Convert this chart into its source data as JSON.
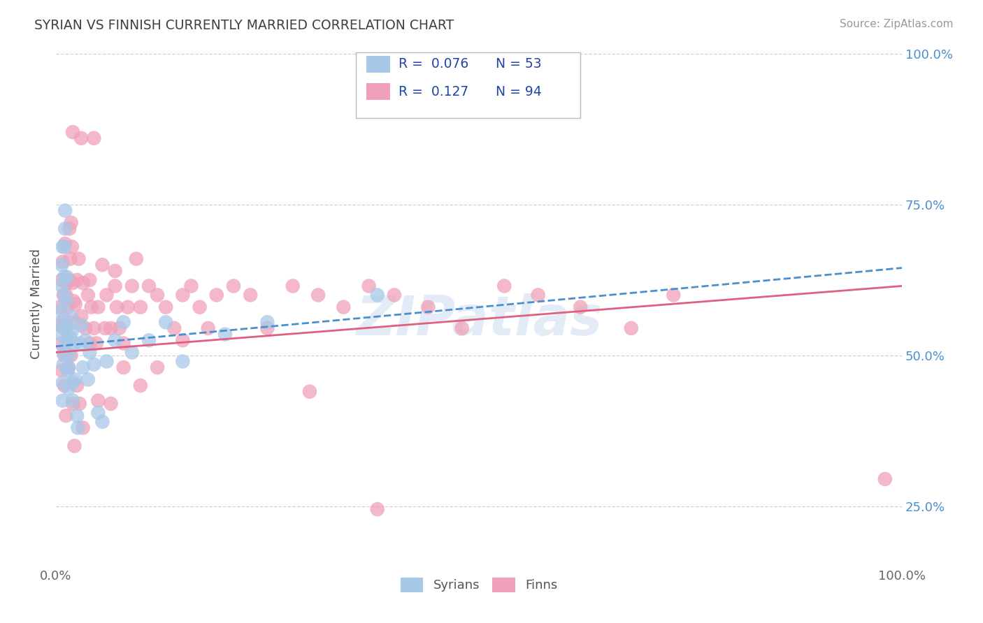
{
  "title": "SYRIAN VS FINNISH CURRENTLY MARRIED CORRELATION CHART",
  "source_text": "Source: ZipAtlas.com",
  "ylabel": "Currently Married",
  "xlim": [
    0.0,
    1.0
  ],
  "ylim": [
    0.15,
    1.02
  ],
  "xtick_labels": [
    "0.0%",
    "100.0%"
  ],
  "ytick_labels": [
    "25.0%",
    "50.0%",
    "75.0%",
    "100.0%"
  ],
  "ytick_positions": [
    0.25,
    0.5,
    0.75,
    1.0
  ],
  "watermark": "ZIPatlas",
  "legend": {
    "syrian_R": "0.076",
    "syrian_N": "53",
    "finn_R": "0.127",
    "finn_N": "94",
    "syrian_color": "#a8c8e8",
    "finn_color": "#f0a0b8"
  },
  "syrian_color": "#a8c8e8",
  "finn_color": "#f0a0b8",
  "syrian_line_color": "#4a90d0",
  "finn_line_color": "#e06080",
  "background_color": "#ffffff",
  "grid_color": "#d0d0d0",
  "title_color": "#404040",
  "legend_text_color": "#2244aa",
  "right_tick_color": "#4a90d0",
  "syrian_line_start": 0.515,
  "syrian_line_end": 0.645,
  "finn_line_start": 0.505,
  "finn_line_end": 0.615,
  "syrian_points_x": [
    0.005,
    0.005,
    0.006,
    0.007,
    0.007,
    0.008,
    0.008,
    0.008,
    0.009,
    0.009,
    0.01,
    0.01,
    0.01,
    0.01,
    0.011,
    0.011,
    0.012,
    0.012,
    0.013,
    0.013,
    0.014,
    0.014,
    0.015,
    0.015,
    0.016,
    0.017,
    0.018,
    0.019,
    0.02,
    0.02,
    0.022,
    0.023,
    0.025,
    0.026,
    0.028,
    0.03,
    0.032,
    0.035,
    0.038,
    0.04,
    0.045,
    0.05,
    0.055,
    0.06,
    0.07,
    0.08,
    0.09,
    0.11,
    0.13,
    0.15,
    0.2,
    0.25,
    0.38
  ],
  "syrian_points_y": [
    0.535,
    0.555,
    0.575,
    0.615,
    0.65,
    0.68,
    0.455,
    0.425,
    0.505,
    0.485,
    0.6,
    0.63,
    0.545,
    0.68,
    0.71,
    0.74,
    0.52,
    0.59,
    0.63,
    0.55,
    0.475,
    0.525,
    0.48,
    0.445,
    0.5,
    0.53,
    0.565,
    0.54,
    0.455,
    0.425,
    0.52,
    0.46,
    0.4,
    0.38,
    0.52,
    0.55,
    0.48,
    0.525,
    0.46,
    0.505,
    0.485,
    0.405,
    0.39,
    0.49,
    0.525,
    0.555,
    0.505,
    0.525,
    0.555,
    0.49,
    0.535,
    0.555,
    0.6
  ],
  "finn_points_x": [
    0.004,
    0.005,
    0.006,
    0.007,
    0.007,
    0.008,
    0.009,
    0.009,
    0.01,
    0.01,
    0.011,
    0.012,
    0.012,
    0.013,
    0.014,
    0.015,
    0.016,
    0.017,
    0.018,
    0.019,
    0.02,
    0.021,
    0.022,
    0.023,
    0.025,
    0.027,
    0.03,
    0.032,
    0.035,
    0.038,
    0.04,
    0.042,
    0.045,
    0.048,
    0.05,
    0.055,
    0.058,
    0.06,
    0.065,
    0.07,
    0.072,
    0.075,
    0.08,
    0.085,
    0.09,
    0.1,
    0.11,
    0.12,
    0.13,
    0.14,
    0.15,
    0.16,
    0.17,
    0.18,
    0.19,
    0.21,
    0.23,
    0.25,
    0.28,
    0.31,
    0.34,
    0.37,
    0.4,
    0.44,
    0.48,
    0.53,
    0.57,
    0.62,
    0.68,
    0.73,
    0.01,
    0.012,
    0.015,
    0.018,
    0.02,
    0.022,
    0.025,
    0.028,
    0.032,
    0.04,
    0.05,
    0.065,
    0.08,
    0.1,
    0.12,
    0.15,
    0.02,
    0.03,
    0.045,
    0.07,
    0.095,
    0.3,
    0.98,
    0.38
  ],
  "finn_points_y": [
    0.58,
    0.55,
    0.52,
    0.475,
    0.625,
    0.655,
    0.6,
    0.545,
    0.5,
    0.56,
    0.685,
    0.6,
    0.545,
    0.62,
    0.58,
    0.625,
    0.71,
    0.66,
    0.72,
    0.68,
    0.62,
    0.59,
    0.555,
    0.585,
    0.625,
    0.66,
    0.565,
    0.62,
    0.545,
    0.6,
    0.625,
    0.58,
    0.545,
    0.52,
    0.58,
    0.65,
    0.545,
    0.6,
    0.545,
    0.615,
    0.58,
    0.545,
    0.52,
    0.58,
    0.615,
    0.58,
    0.615,
    0.6,
    0.58,
    0.545,
    0.6,
    0.615,
    0.58,
    0.545,
    0.6,
    0.615,
    0.6,
    0.545,
    0.615,
    0.6,
    0.58,
    0.615,
    0.6,
    0.58,
    0.545,
    0.615,
    0.6,
    0.58,
    0.545,
    0.6,
    0.45,
    0.4,
    0.48,
    0.5,
    0.42,
    0.35,
    0.45,
    0.42,
    0.38,
    0.52,
    0.425,
    0.42,
    0.48,
    0.45,
    0.48,
    0.525,
    0.87,
    0.86,
    0.86,
    0.64,
    0.66,
    0.44,
    0.295,
    0.245
  ]
}
